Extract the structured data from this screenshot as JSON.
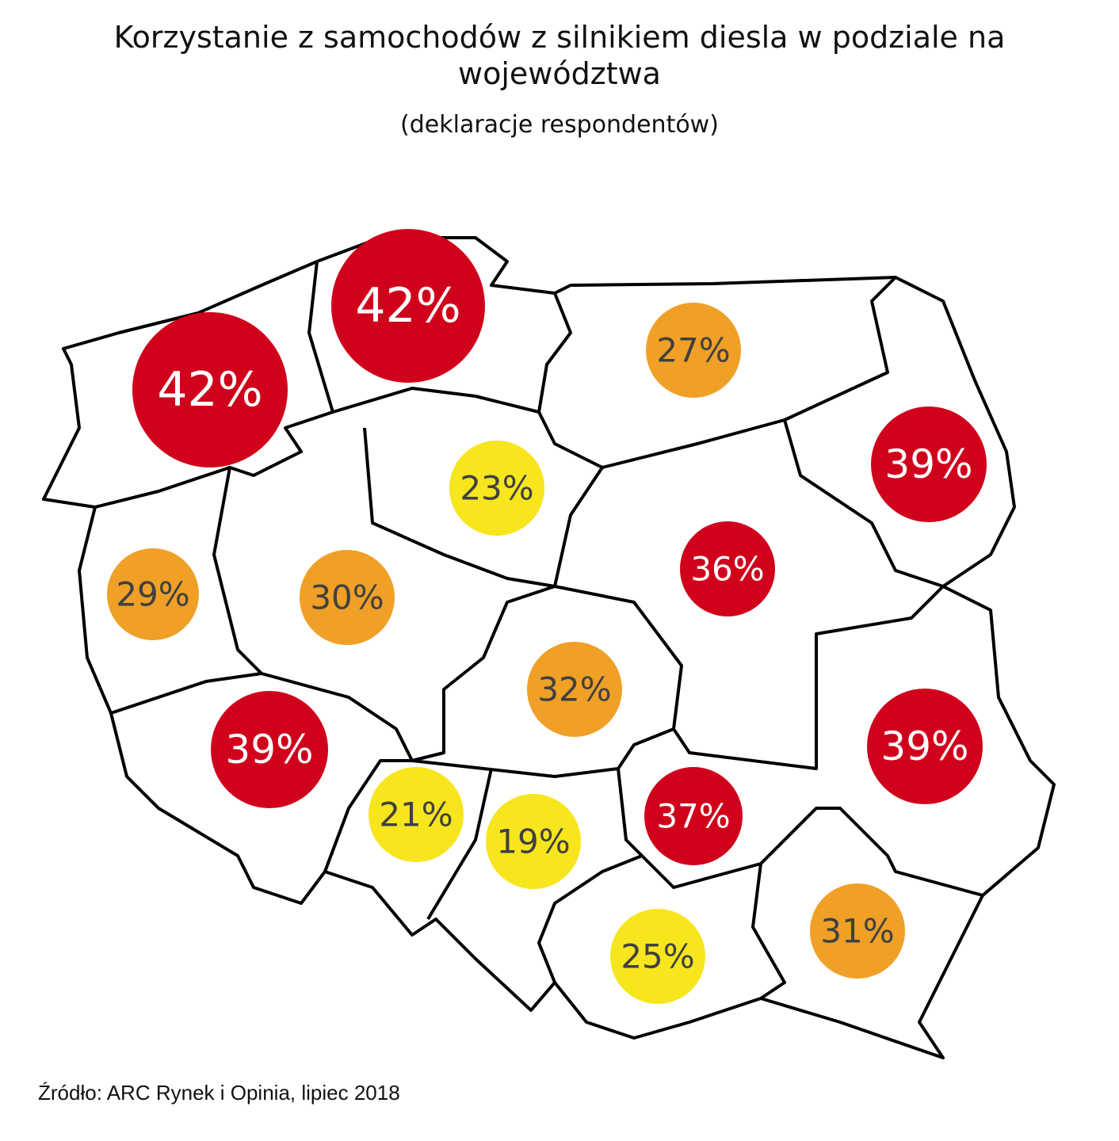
{
  "title": "Korzystanie z samochodów z silnikiem diesla w podziale na województwa",
  "subtitle": "(deklaracje respondentów)",
  "source": "Źródło: ARC Rynek i Opinia, lipiec 2018",
  "map": {
    "regions": [
      {
        "value": 42,
        "label": "42%",
        "color": "#d0021b",
        "text_color": "#ffffff"
      },
      {
        "value": 42,
        "label": "42%",
        "color": "#d0021b",
        "text_color": "#ffffff"
      },
      {
        "value": 27,
        "label": "27%",
        "color": "#f0a027",
        "text_color": "#404040"
      },
      {
        "value": 39,
        "label": "39%",
        "color": "#d0021b",
        "text_color": "#ffffff"
      },
      {
        "value": 23,
        "label": "23%",
        "color": "#f7e51e",
        "text_color": "#404040"
      },
      {
        "value": 36,
        "label": "36%",
        "color": "#d0021b",
        "text_color": "#ffffff"
      },
      {
        "value": 29,
        "label": "29%",
        "color": "#f0a027",
        "text_color": "#404040"
      },
      {
        "value": 30,
        "label": "30%",
        "color": "#f0a027",
        "text_color": "#404040"
      },
      {
        "value": 32,
        "label": "32%",
        "color": "#f0a027",
        "text_color": "#404040"
      },
      {
        "value": 39,
        "label": "39%",
        "color": "#d0021b",
        "text_color": "#ffffff"
      },
      {
        "value": 39,
        "label": "39%",
        "color": "#d0021b",
        "text_color": "#ffffff"
      },
      {
        "value": 37,
        "label": "37%",
        "color": "#d0021b",
        "text_color": "#ffffff"
      },
      {
        "value": 21,
        "label": "21%",
        "color": "#f7e51e",
        "text_color": "#404040"
      },
      {
        "value": 19,
        "label": "19%",
        "color": "#f7e51e",
        "text_color": "#404040"
      },
      {
        "value": 25,
        "label": "25%",
        "color": "#f7e51e",
        "text_color": "#404040"
      },
      {
        "value": 31,
        "label": "31%",
        "color": "#f0a027",
        "text_color": "#404040"
      }
    ]
  }
}
